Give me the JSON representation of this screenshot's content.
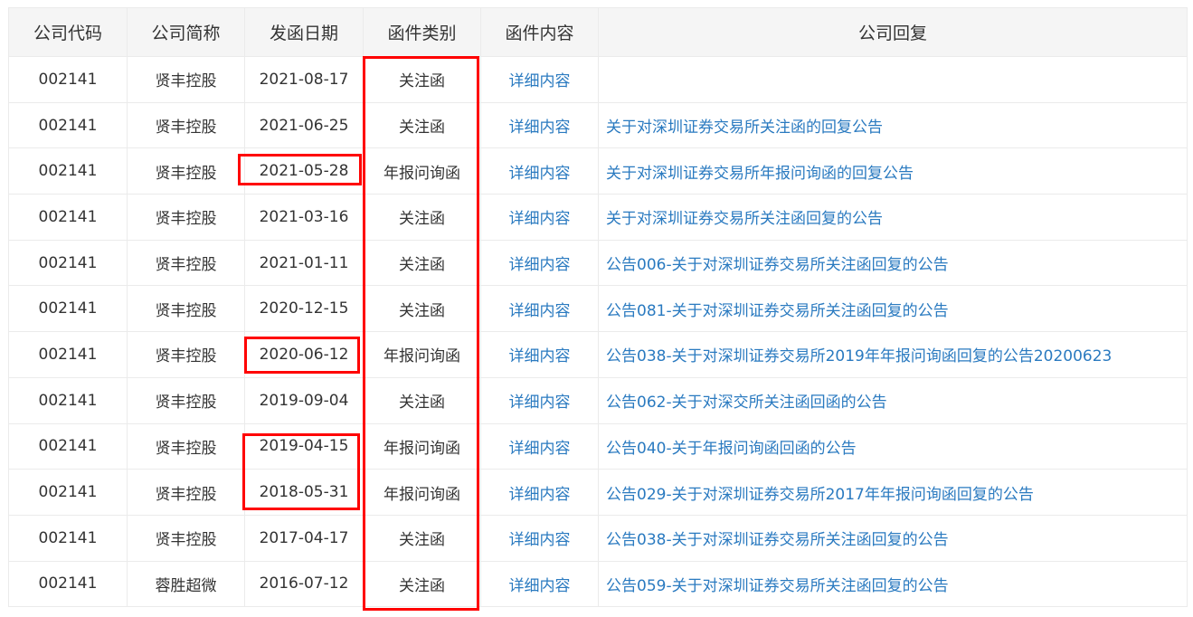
{
  "headers": [
    "公司代码",
    "公司简称",
    "发函日期",
    "函件类别",
    "函件内容",
    "公司回复"
  ],
  "rows": [
    {
      "code": "002141",
      "name": "贤丰控股",
      "date": "2021-08-17",
      "type": "关注函",
      "detail": "详细内容",
      "reply": ""
    },
    {
      "code": "002141",
      "name": "贤丰控股",
      "date": "2021-06-25",
      "type": "关注函",
      "detail": "详细内容",
      "reply": "关于对深圳证券交易所关注函的回复公告"
    },
    {
      "code": "002141",
      "name": "贤丰控股",
      "date": "2021-05-28",
      "type": "年报问询函",
      "detail": "详细内容",
      "reply": "关于对深圳证券交易所年报问询函的回复公告"
    },
    {
      "code": "002141",
      "name": "贤丰控股",
      "date": "2021-03-16",
      "type": "关注函",
      "detail": "详细内容",
      "reply": "关于对深圳证券交易所关注函回复的公告"
    },
    {
      "code": "002141",
      "name": "贤丰控股",
      "date": "2021-01-11",
      "type": "关注函",
      "detail": "详细内容",
      "reply": "公告006-关于对深圳证券交易所关注函回复的公告"
    },
    {
      "code": "002141",
      "name": "贤丰控股",
      "date": "2020-12-15",
      "type": "关注函",
      "detail": "详细内容",
      "reply": "公告081-关于对深圳证券交易所关注函回复的公告"
    },
    {
      "code": "002141",
      "name": "贤丰控股",
      "date": "2020-06-12",
      "type": "年报问询函",
      "detail": "详细内容",
      "reply": "公告038-关于对深圳证券交易所2019年年报问询函回复的公告20200623"
    },
    {
      "code": "002141",
      "name": "贤丰控股",
      "date": "2019-09-04",
      "type": "关注函",
      "detail": "详细内容",
      "reply": "公告062-关于对深交所关注函回函的公告"
    },
    {
      "code": "002141",
      "name": "贤丰控股",
      "date": "2019-04-15",
      "type": "年报问询函",
      "detail": "详细内容",
      "reply": "公告040-关于年报问询函回函的公告"
    },
    {
      "code": "002141",
      "name": "贤丰控股",
      "date": "2018-05-31",
      "type": "年报问询函",
      "detail": "详细内容",
      "reply": "公告029-关于对深圳证券交易所2017年年报问询函回复的公告"
    },
    {
      "code": "002141",
      "name": "贤丰控股",
      "date": "2017-04-17",
      "type": "关注函",
      "detail": "详细内容",
      "reply": "公告038-关于对深圳证券交易所关注函回复的公告"
    },
    {
      "code": "002141",
      "name": "蓉胜超微",
      "date": "2016-07-12",
      "type": "关注函",
      "detail": "详细内容",
      "reply": "公告059-关于对深圳证券交易所关注函回复的公告"
    }
  ],
  "colors": {
    "link": "#2a7ac0",
    "highlight": "#ff0000",
    "header_bg": "#f5f5f5"
  }
}
